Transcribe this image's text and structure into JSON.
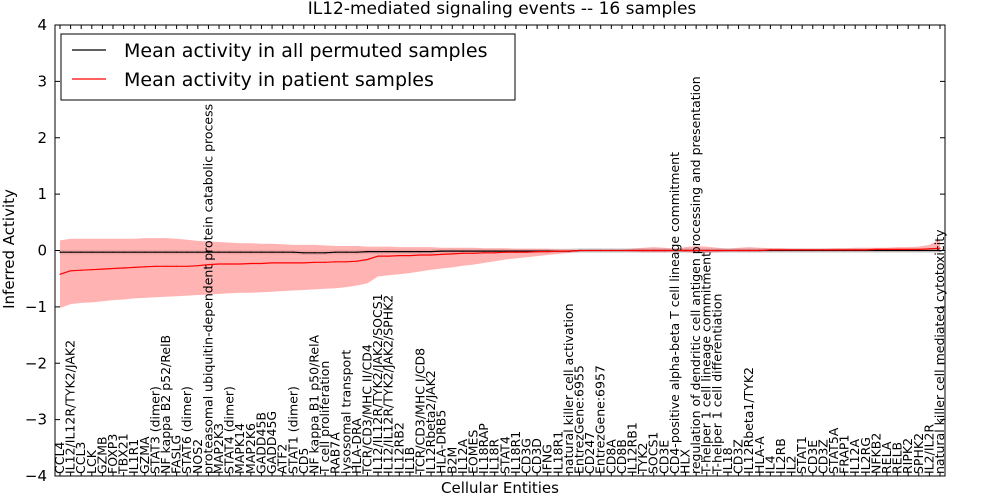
{
  "chart_data": {
    "type": "line",
    "title": "IL12-mediated signaling events -- 16 samples",
    "xlabel": "Cellular Entities",
    "ylabel": "Inferred Activity",
    "ylim": [
      -4,
      4
    ],
    "yticks": [
      -4,
      -3,
      -2,
      -1,
      0,
      1,
      2,
      3,
      4
    ],
    "legend_position": "top-left",
    "categories": [
      "CCL4",
      "IL12/IL12R/TYK2/JAK2",
      "CCL3",
      "LCK",
      "GZMB",
      "FOXP3",
      "TBX21",
      "IL1R1",
      "GZMA",
      "STAT3 (dimer)",
      "NF kappa B2 p52/RelB",
      "FASLG",
      "STAT6 (dimer)",
      "NOS2",
      "proteasomal ubiquitin-dependent protein catabolic process",
      "MAP2K3",
      "STAT4 (dimer)",
      "MAPK14",
      "MAP2K6",
      "GADD45B",
      "GADD45G",
      "ATF2",
      "STAT1 (dimer)",
      "CD5",
      "NF kappa B1 p50/RelA",
      "T cell proliferation",
      "RAB7A",
      "lysosomal transport",
      "HLA-DRA",
      "TCR/CD3/MHC II/CD4",
      "IL12/IL12R/TYK2/JAK2/SOCS1",
      "IL12/IL12R/TYK2/JAK2/SPHK2",
      "IL12RB2",
      "IL1B",
      "TCR/CD3/MHC I/CD8",
      "IL12Rbeta2/JAK2",
      "HLA-DRB5",
      "B2M",
      "IL12A",
      "EOMES",
      "IL18RAP",
      "IL18R",
      "STAT4",
      "IL18R1",
      "CD3G",
      "CD3D",
      "IFNG",
      "IL18R1",
      "natural killer cell activation",
      "EntrezGene:6955",
      "CD247",
      "EntrezGene:6957",
      "CD8A",
      "CD8B",
      "IL12RB1",
      "TYK2",
      "SOCS1",
      "CD3E",
      "CD4-positive alpha-beta T cell lineage commitment",
      "HLX",
      "regulation of dendritic cell antigen processing and presentation",
      "T-helper 1 cell lineage commitment",
      "T-helper 1 cell differentiation",
      "IL18",
      "CD3Z",
      "IL12Rbeta1/TYK2",
      "HLA-A",
      "IL4",
      "IL2RB",
      "IL2",
      "STAT1",
      "CD3E",
      "CD3Z",
      "STAT5A",
      "FRAP1",
      "IL12A",
      "IL2RG",
      "NFKB2",
      "RELA",
      "RELB",
      "RIPK2",
      "SPHK2",
      "IL2/IL2R",
      "natural killer cell mediated cytotoxicity"
    ],
    "series": [
      {
        "name": "Mean activity in all permuted samples",
        "color": "#000000",
        "values": [
          -0.03,
          -0.03,
          -0.03,
          -0.03,
          -0.03,
          -0.03,
          -0.03,
          -0.03,
          -0.03,
          -0.03,
          -0.03,
          -0.03,
          -0.03,
          -0.03,
          -0.03,
          -0.03,
          -0.03,
          -0.03,
          -0.03,
          -0.03,
          -0.03,
          -0.03,
          -0.03,
          -0.04,
          -0.04,
          -0.04,
          -0.03,
          -0.03,
          -0.03,
          -0.02,
          -0.02,
          -0.02,
          -0.02,
          -0.02,
          -0.02,
          -0.02,
          -0.01,
          -0.01,
          -0.01,
          -0.01,
          -0.01,
          -0.01,
          -0.01,
          -0.01,
          -0.01,
          -0.01,
          -0.01,
          -0.01,
          -0.01,
          0.0,
          0.0,
          0.0,
          0.0,
          0.0,
          0.0,
          0.0,
          0.0,
          0.0,
          0.0,
          0.0,
          0.0,
          0.0,
          0.0,
          0.0,
          0.0,
          0.0,
          0.0,
          0.0,
          0.0,
          0.0,
          0.0,
          0.0,
          0.0,
          0.0,
          0.0,
          0.0,
          0.0,
          0.0,
          0.0,
          0.0,
          0.0,
          0.0,
          0.0,
          0.0
        ]
      },
      {
        "name": "Mean activity in patient samples",
        "color": "#ff0000",
        "fill_color": "#ff8080",
        "values": [
          -0.42,
          -0.36,
          -0.35,
          -0.34,
          -0.33,
          -0.32,
          -0.31,
          -0.3,
          -0.29,
          -0.28,
          -0.28,
          -0.28,
          -0.28,
          -0.27,
          -0.25,
          -0.24,
          -0.24,
          -0.24,
          -0.23,
          -0.23,
          -0.22,
          -0.22,
          -0.22,
          -0.22,
          -0.21,
          -0.21,
          -0.2,
          -0.2,
          -0.19,
          -0.16,
          -0.1,
          -0.1,
          -0.09,
          -0.09,
          -0.08,
          -0.08,
          -0.07,
          -0.06,
          -0.05,
          -0.05,
          -0.04,
          -0.04,
          -0.03,
          -0.03,
          -0.03,
          -0.02,
          -0.02,
          -0.01,
          -0.01,
          0.0,
          0.0,
          0.0,
          0.0,
          0.0,
          0.0,
          0.0,
          0.0,
          0.0,
          0.0,
          0.0,
          0.0,
          0.0,
          0.0,
          0.0,
          0.0,
          0.0,
          0.0,
          0.01,
          0.01,
          0.01,
          0.01,
          0.01,
          0.01,
          0.01,
          0.01,
          0.01,
          0.01,
          0.02,
          0.02,
          0.02,
          0.02,
          0.02,
          0.03,
          0.04
        ],
        "band_upper": [
          0.18,
          0.21,
          0.21,
          0.21,
          0.21,
          0.21,
          0.21,
          0.21,
          0.22,
          0.22,
          0.22,
          0.21,
          0.19,
          0.17,
          0.16,
          0.15,
          0.14,
          0.13,
          0.13,
          0.12,
          0.12,
          0.11,
          0.1,
          0.1,
          0.1,
          0.09,
          0.08,
          0.08,
          0.08,
          0.07,
          0.07,
          0.07,
          0.06,
          0.06,
          0.06,
          0.06,
          0.05,
          0.05,
          0.05,
          0.05,
          0.04,
          0.04,
          0.04,
          0.03,
          0.03,
          0.03,
          0.03,
          0.02,
          0.02,
          0.01,
          0.01,
          0.01,
          0.01,
          0.01,
          0.03,
          0.05,
          0.06,
          0.05,
          0.03,
          0.06,
          0.08,
          0.07,
          0.05,
          0.03,
          0.05,
          0.06,
          0.05,
          0.04,
          0.04,
          0.03,
          0.03,
          0.03,
          0.03,
          0.04,
          0.04,
          0.05,
          0.05,
          0.05,
          0.05,
          0.06,
          0.06,
          0.07,
          0.1,
          0.2
        ],
        "band_lower": [
          -1.02,
          -0.95,
          -0.93,
          -0.92,
          -0.9,
          -0.88,
          -0.87,
          -0.85,
          -0.84,
          -0.83,
          -0.82,
          -0.81,
          -0.8,
          -0.79,
          -0.78,
          -0.77,
          -0.76,
          -0.75,
          -0.75,
          -0.74,
          -0.73,
          -0.72,
          -0.71,
          -0.7,
          -0.69,
          -0.68,
          -0.67,
          -0.65,
          -0.62,
          -0.58,
          -0.46,
          -0.44,
          -0.42,
          -0.4,
          -0.37,
          -0.34,
          -0.32,
          -0.3,
          -0.27,
          -0.25,
          -0.22,
          -0.19,
          -0.16,
          -0.14,
          -0.12,
          -0.1,
          -0.08,
          -0.06,
          -0.04,
          -0.02,
          -0.01,
          -0.01,
          -0.01,
          -0.01,
          -0.02,
          -0.03,
          -0.03,
          -0.03,
          -0.02,
          -0.03,
          -0.04,
          -0.04,
          -0.03,
          -0.02,
          -0.02,
          -0.02,
          -0.02,
          -0.01,
          -0.01,
          -0.01,
          -0.01,
          -0.01,
          -0.01,
          -0.01,
          -0.01,
          -0.01,
          -0.01,
          -0.01,
          -0.01,
          -0.01,
          -0.01,
          -0.01,
          -0.01,
          -0.01
        ]
      }
    ],
    "permuted_band_color": "#d8d8d8"
  }
}
